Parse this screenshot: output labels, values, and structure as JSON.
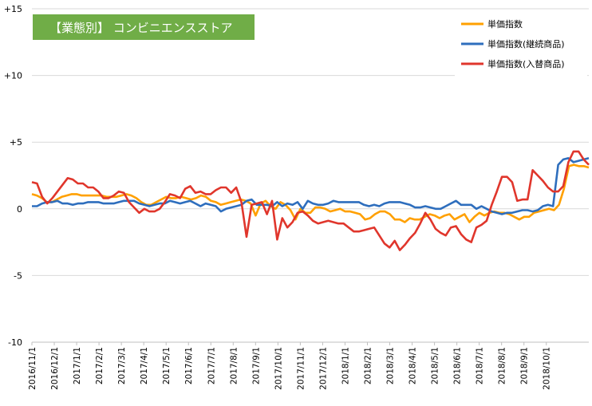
{
  "chart_data": {
    "type": "line",
    "title": "【業態別】 コンビニエンスストア",
    "title_bg": "#70ad47",
    "ylim": [
      -10,
      15
    ],
    "yticks": [
      {
        "v": 15,
        "label": "+15"
      },
      {
        "v": 10,
        "label": "+10"
      },
      {
        "v": 5,
        "label": "+5"
      },
      {
        "v": 0,
        "label": "0"
      },
      {
        "v": -5,
        "label": "-5"
      },
      {
        "v": -10,
        "label": "-10"
      }
    ],
    "grid": true,
    "legend": "top-right",
    "x_labels": [
      "2016/11/1",
      "2016/12/1",
      "2017/1/1",
      "2017/2/1",
      "2017/3/1",
      "2017/4/1",
      "2017/5/1",
      "2017/6/1",
      "2017/7/1",
      "2017/8/1",
      "2017/9/1",
      "2017/10/1",
      "2017/11/1",
      "2017/12/1",
      "2018/1/1",
      "2018/2/1",
      "2018/3/1",
      "2018/4/1",
      "2018/5/1",
      "2018/6/1",
      "2018/7/1",
      "2018/8/1",
      "2018/9/1",
      "2018/10/1"
    ],
    "points_per_month": 4.5,
    "series": [
      {
        "name": "単価指数",
        "color": "#ffa000",
        "values": [
          1.1,
          1.0,
          0.8,
          0.5,
          0.5,
          0.7,
          0.9,
          1.0,
          1.1,
          1.1,
          1.0,
          1.0,
          1.0,
          1.0,
          1.0,
          0.9,
          0.9,
          0.9,
          1.0,
          1.1,
          1.0,
          0.8,
          0.5,
          0.3,
          0.3,
          0.5,
          0.7,
          0.9,
          0.8,
          0.8,
          0.9,
          0.8,
          0.7,
          0.8,
          1.0,
          0.9,
          0.6,
          0.5,
          0.3,
          0.4,
          0.5,
          0.6,
          0.7,
          0.6,
          0.4,
          -0.5,
          0.4,
          0.6,
          0.2,
          0.0,
          0.5,
          0.3,
          -0.1,
          -0.8,
          0.0,
          -0.3,
          -0.3,
          0.1,
          0.1,
          0.0,
          -0.2,
          -0.1,
          0.0,
          -0.2,
          -0.2,
          -0.3,
          -0.4,
          -0.8,
          -0.7,
          -0.4,
          -0.2,
          -0.2,
          -0.4,
          -0.8,
          -0.8,
          -1.0,
          -0.7,
          -0.8,
          -0.8,
          -0.6,
          -0.4,
          -0.5,
          -0.7,
          -0.5,
          -0.4,
          -0.8,
          -0.6,
          -0.4,
          -1.0,
          -0.6,
          -0.3,
          -0.5,
          -0.3,
          -0.2,
          -0.3,
          -0.3,
          -0.4,
          -0.6,
          -0.8,
          -0.6,
          -0.6,
          -0.3,
          -0.2,
          -0.1,
          0.0,
          -0.1,
          0.3,
          1.5,
          3.2,
          3.3,
          3.2,
          3.2,
          3.1
        ],
        "label_in_legend": true
      },
      {
        "name": "単価指数(継続商品)",
        "color": "#2e6ebd",
        "values": [
          0.2,
          0.2,
          0.4,
          0.5,
          0.5,
          0.6,
          0.4,
          0.4,
          0.3,
          0.4,
          0.4,
          0.5,
          0.5,
          0.5,
          0.4,
          0.4,
          0.4,
          0.5,
          0.6,
          0.6,
          0.6,
          0.4,
          0.3,
          0.2,
          0.3,
          0.4,
          0.4,
          0.6,
          0.5,
          0.4,
          0.5,
          0.6,
          0.4,
          0.2,
          0.4,
          0.3,
          0.2,
          -0.2,
          0.0,
          0.1,
          0.2,
          0.3,
          0.6,
          0.7,
          0.3,
          0.3,
          0.3,
          0.2,
          0.5,
          0.2,
          0.4,
          0.3,
          0.5,
          0.0,
          0.6,
          0.4,
          0.3,
          0.3,
          0.4,
          0.6,
          0.5,
          0.5,
          0.5,
          0.5,
          0.5,
          0.3,
          0.2,
          0.3,
          0.2,
          0.4,
          0.5,
          0.5,
          0.5,
          0.4,
          0.3,
          0.1,
          0.1,
          0.2,
          0.1,
          0.0,
          0.0,
          0.2,
          0.4,
          0.6,
          0.3,
          0.3,
          0.3,
          0.0,
          0.2,
          0.0,
          -0.2,
          -0.3,
          -0.4,
          -0.3,
          -0.3,
          -0.2,
          -0.1,
          -0.1,
          -0.2,
          -0.1,
          0.2,
          0.3,
          0.2,
          3.3,
          3.7,
          3.8,
          3.5,
          3.6,
          3.7,
          3.8
        ],
        "label_in_legend": true
      },
      {
        "name": "単価指数(入替商品)",
        "color": "#e0362c",
        "values": [
          2.0,
          1.9,
          0.9,
          0.4,
          0.8,
          1.3,
          1.8,
          2.3,
          2.2,
          1.9,
          1.9,
          1.6,
          1.6,
          1.3,
          0.8,
          0.8,
          1.0,
          1.3,
          1.2,
          0.5,
          0.1,
          -0.3,
          0.0,
          -0.2,
          -0.2,
          0.0,
          0.5,
          1.1,
          1.0,
          0.8,
          1.5,
          1.7,
          1.2,
          1.3,
          1.1,
          1.1,
          1.4,
          1.6,
          1.6,
          1.2,
          1.6,
          0.5,
          -2.1,
          0.3,
          0.4,
          0.5,
          -0.4,
          0.6,
          -2.3,
          -0.7,
          -1.4,
          -1.0,
          -0.3,
          -0.2,
          -0.5,
          -0.9,
          -1.1,
          -1.0,
          -0.9,
          -1.0,
          -1.1,
          -1.1,
          -1.4,
          -1.7,
          -1.7,
          -1.6,
          -1.5,
          -1.4,
          -2.0,
          -2.6,
          -2.9,
          -2.4,
          -3.1,
          -2.7,
          -2.2,
          -1.8,
          -1.1,
          -0.3,
          -0.8,
          -1.5,
          -1.8,
          -2.0,
          -1.4,
          -1.3,
          -1.9,
          -2.3,
          -2.5,
          -1.4,
          -1.2,
          -0.9,
          0.3,
          1.3,
          2.4,
          2.4,
          2.0,
          0.6,
          0.7,
          0.7,
          2.9,
          2.5,
          2.1,
          1.6,
          1.3,
          1.3,
          1.7,
          3.5,
          4.3,
          4.3,
          3.7,
          3.3
        ],
        "label_in_legend": true
      }
    ]
  }
}
